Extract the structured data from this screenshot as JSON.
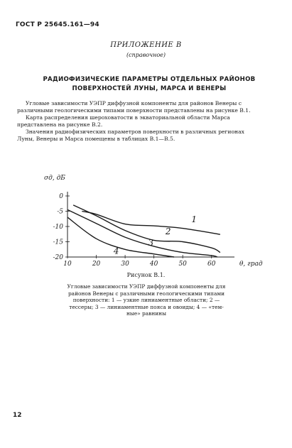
{
  "header": {
    "standard": "ГОСТ Р 25645.161—94"
  },
  "appendix": {
    "title": "ПРИЛОЖЕНИЕ В",
    "subtitle": "(справочное)"
  },
  "section": {
    "title_line1": "РАДИОФИЗИЧЕСКИЕ ПАРАМЕТРЫ ОТДЕЛЬНЫХ РАЙОНОВ",
    "title_line2": "ПОВЕРХНОСТЕЙ ЛУНЫ, МАРСА И ВЕНЕРЫ"
  },
  "body": {
    "p1_line1": "Угловые зависимости УЭПР диффузной компоненты для районов Венеры с",
    "p1_line2": "различными геологическими типами поверхности представлены на рисунке В.1.",
    "p2_line1": "Карта распределения шероховатости в экваториальной области Марса",
    "p2_line2": "представлена на рисунке В.2.",
    "p3_line1": "Значения радиофизических параметров поверхности в различных регионах",
    "p3_line2": "Луны, Венеры и Марса помещены в таблицах В.1—В.5."
  },
  "chart_data": {
    "type": "line",
    "ylabel": "σд, дБ",
    "xlabel": "θ, град",
    "x_ticks": [
      "10",
      "20",
      "30",
      "40",
      "50",
      "60"
    ],
    "y_ticks": [
      "0",
      "-5",
      "-10",
      "-15",
      "-20"
    ],
    "xlim": [
      10,
      65
    ],
    "ylim": [
      -20,
      0
    ],
    "series": [
      {
        "name": "1",
        "points": [
          [
            15,
            -5
          ],
          [
            20,
            -6
          ],
          [
            30,
            -9.2
          ],
          [
            40,
            -9.8
          ],
          [
            50,
            -10.6
          ],
          [
            63,
            -12.6
          ]
        ]
      },
      {
        "name": "2",
        "points": [
          [
            12,
            -3
          ],
          [
            20,
            -6.5
          ],
          [
            30,
            -11.3
          ],
          [
            40,
            -14.5
          ],
          [
            50,
            -15
          ],
          [
            60,
            -17
          ],
          [
            63,
            -18.5
          ]
        ]
      },
      {
        "name": "3",
        "points": [
          [
            10,
            -4.5
          ],
          [
            20,
            -9
          ],
          [
            30,
            -13.5
          ],
          [
            40,
            -16.5
          ],
          [
            50,
            -18.5
          ],
          [
            60,
            -19.5
          ],
          [
            62,
            -20
          ]
        ]
      },
      {
        "name": "4",
        "points": [
          [
            10,
            -7
          ],
          [
            20,
            -14
          ],
          [
            30,
            -17.5
          ],
          [
            40,
            -19
          ],
          [
            47,
            -20
          ]
        ]
      }
    ],
    "curve_labels": [
      "1",
      "2",
      "3",
      "4"
    ]
  },
  "figure": {
    "caption": "Рисунок В.1.",
    "legend_line1": "Угловые зависимости УЭПР диффузной компоненты для",
    "legend_line2": "районов Венеры с различными геологическими типами",
    "legend_line3": "поверхности: 1 — узкие линиаментные области; 2 —",
    "legend_line4": "тессеры; 3 — линиаментные пояса и овоиды; 4 — «тем-",
    "legend_line5": "ные» равнины"
  },
  "page": {
    "number": "12"
  }
}
